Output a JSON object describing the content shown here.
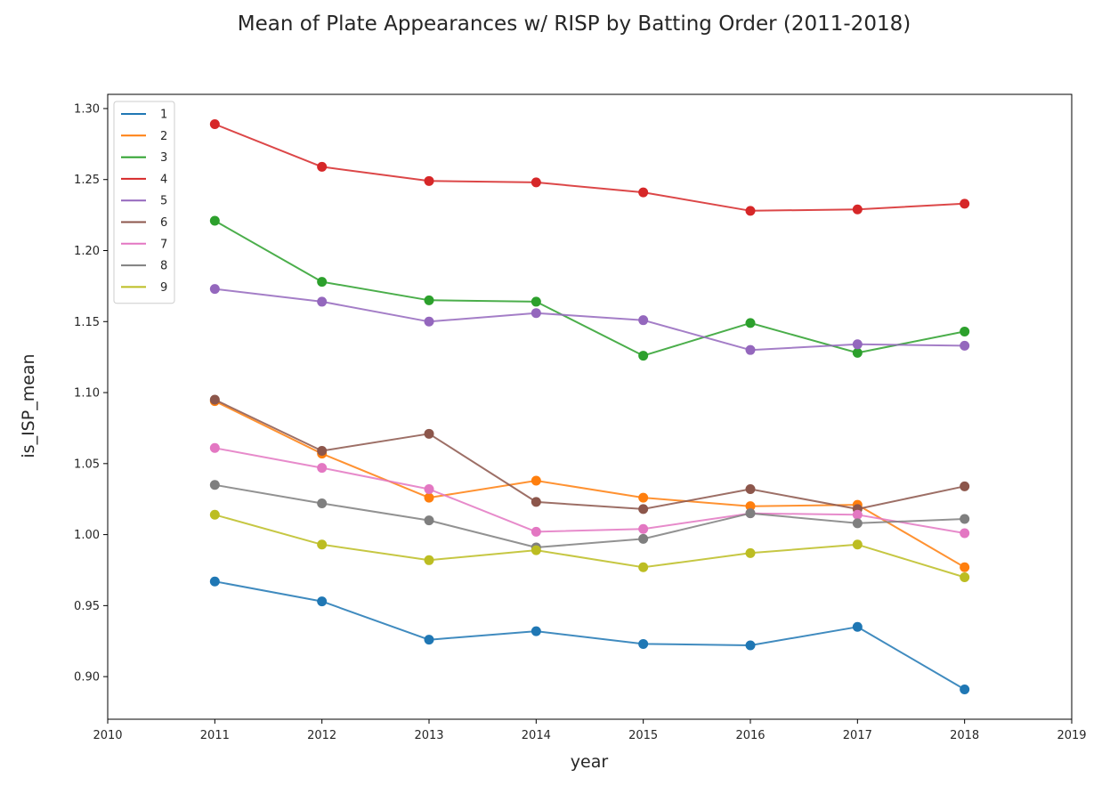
{
  "chart_data": {
    "type": "line",
    "title": "Mean of Plate Appearances w/ RISP by Batting Order (2011-2018)",
    "xlabel": "year",
    "ylabel": "is_ISP_mean",
    "xlim": [
      2010,
      2019
    ],
    "ylim": [
      0.87,
      1.31
    ],
    "x_ticks": [
      "2010",
      "2011",
      "2012",
      "2013",
      "2014",
      "2015",
      "2016",
      "2017",
      "2018",
      "2019"
    ],
    "y_ticks": [
      "0.90",
      "0.95",
      "1.00",
      "1.05",
      "1.10",
      "1.15",
      "1.20",
      "1.25",
      "1.30"
    ],
    "grid": false,
    "legend_position": "top-left",
    "x": [
      2011,
      2012,
      2013,
      2014,
      2015,
      2016,
      2017,
      2018
    ],
    "series": [
      {
        "name": "1",
        "color": "#1f77b4",
        "values": [
          0.967,
          0.953,
          0.926,
          0.932,
          0.923,
          0.922,
          0.935,
          0.891
        ]
      },
      {
        "name": "2",
        "color": "#ff7f0e",
        "values": [
          1.094,
          1.057,
          1.026,
          1.038,
          1.026,
          1.02,
          1.021,
          0.977
        ]
      },
      {
        "name": "3",
        "color": "#2ca02c",
        "values": [
          1.221,
          1.178,
          1.165,
          1.164,
          1.126,
          1.149,
          1.128,
          1.143
        ]
      },
      {
        "name": "4",
        "color": "#d62728",
        "values": [
          1.289,
          1.259,
          1.249,
          1.248,
          1.241,
          1.228,
          1.229,
          1.233
        ]
      },
      {
        "name": "5",
        "color": "#9467bd",
        "values": [
          1.173,
          1.164,
          1.15,
          1.156,
          1.151,
          1.13,
          1.134,
          1.133
        ]
      },
      {
        "name": "6",
        "color": "#8c564b",
        "values": [
          1.095,
          1.059,
          1.071,
          1.023,
          1.018,
          1.032,
          1.018,
          1.034
        ]
      },
      {
        "name": "7",
        "color": "#e377c2",
        "values": [
          1.061,
          1.047,
          1.032,
          1.002,
          1.004,
          1.015,
          1.014,
          1.001
        ]
      },
      {
        "name": "8",
        "color": "#7f7f7f",
        "values": [
          1.035,
          1.022,
          1.01,
          0.991,
          0.997,
          1.015,
          1.008,
          1.011
        ]
      },
      {
        "name": "9",
        "color": "#bcbd22",
        "values": [
          1.014,
          0.993,
          0.982,
          0.989,
          0.977,
          0.987,
          0.993,
          0.97
        ]
      }
    ]
  }
}
